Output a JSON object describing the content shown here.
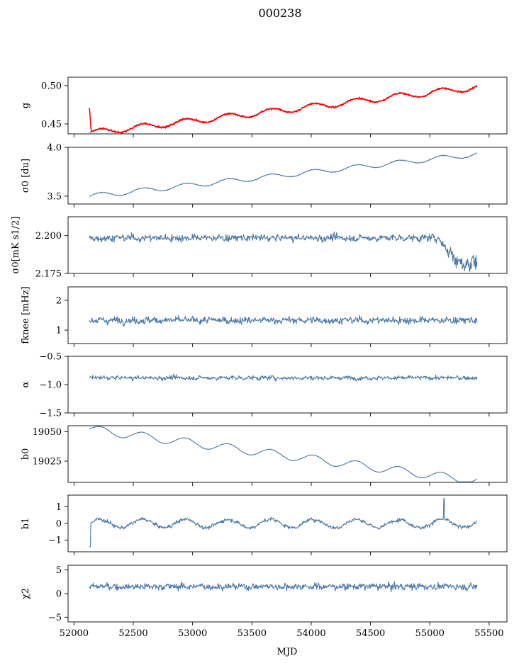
{
  "chart_data": {
    "title": "000238",
    "xlabel": "MJD",
    "xlim": [
      51950,
      55650
    ],
    "x_ticks": [
      52000,
      52500,
      53000,
      53500,
      54000,
      54500,
      55000,
      55500
    ],
    "x_tick_labels": [
      "52000",
      "52500",
      "53000",
      "53500",
      "54000",
      "54500",
      "55000",
      "55500"
    ],
    "x_start": 52130,
    "x_end": 55400,
    "grid": false,
    "colors": {
      "series": "#4c78a8",
      "overlay": "#ff0000"
    },
    "panels": [
      {
        "type": "line",
        "ylabel": "g",
        "ylim": [
          0.437,
          0.511
        ],
        "y_ticks": [
          0.45,
          0.5
        ],
        "y_tick_labels": [
          "0.45",
          "0.50"
        ],
        "model": "trend_wave",
        "trend": [
          0.438,
          0.498
        ],
        "wave_amp": 0.004,
        "wave_period": 360,
        "noise": 0.0008,
        "overlay_series": {
          "color": "#ff0000",
          "spike_at_start": 0.471
        }
      },
      {
        "type": "line",
        "ylabel": "σ0 [du]",
        "ylim": [
          3.42,
          4.0
        ],
        "y_ticks": [
          3.5,
          4.0
        ],
        "y_tick_labels": [
          "3.5",
          "4.0"
        ],
        "model": "trend_wave",
        "trend": [
          3.5,
          3.93
        ],
        "wave_amp": 0.025,
        "wave_period": 360,
        "noise": 0.004
      },
      {
        "type": "line",
        "ylabel": "σ0[mK s1/2]",
        "ylim": [
          2.175,
          2.2125
        ],
        "y_ticks": [
          2.175,
          2.2
        ],
        "y_tick_labels": [
          "2.175",
          "2.200"
        ],
        "model": "noise",
        "mean": 2.1985,
        "noise": 0.003,
        "dip_end": 2.177
      },
      {
        "type": "line",
        "ylabel": "fknee [mHz]",
        "ylim": [
          0.55,
          2.45
        ],
        "y_ticks": [
          1,
          2
        ],
        "y_tick_labels": [
          "1",
          "2"
        ],
        "model": "noise",
        "mean": 1.33,
        "noise": 0.15
      },
      {
        "type": "line",
        "ylabel": "α",
        "ylim": [
          -1.5,
          -0.5
        ],
        "y_ticks": [
          -1.5,
          -1.0,
          -0.5
        ],
        "y_tick_labels": [
          "−1.5",
          "−1.0",
          "−0.5"
        ],
        "model": "noise",
        "mean": -0.88,
        "noise": 0.05
      },
      {
        "type": "line",
        "ylabel": "b0",
        "ylim": [
          19007,
          19055
        ],
        "y_ticks": [
          19025,
          19050
        ],
        "y_tick_labels": [
          "19025",
          "19050"
        ],
        "model": "trend_wave",
        "trend": [
          19052,
          19008
        ],
        "wave_amp": 3.5,
        "wave_period": 360,
        "noise": 0.15
      },
      {
        "type": "line",
        "ylabel": "b1",
        "ylim": [
          -1.7,
          1.7
        ],
        "y_ticks": [
          -1,
          0,
          1
        ],
        "y_tick_labels": [
          "−1",
          "0",
          "1"
        ],
        "model": "noise",
        "mean": 0.0,
        "noise": 0.15,
        "wave_amp": 0.25,
        "wave_period": 360,
        "start_value": -1.4,
        "spike_mjd": 55120,
        "spike_value": 1.5
      },
      {
        "type": "line",
        "ylabel": "χ2",
        "ylim": [
          -6,
          6
        ],
        "y_ticks": [
          -5,
          0,
          5
        ],
        "y_tick_labels": [
          "−5",
          "0",
          "5"
        ],
        "model": "noise",
        "mean": 1.5,
        "noise": 0.9
      }
    ]
  }
}
